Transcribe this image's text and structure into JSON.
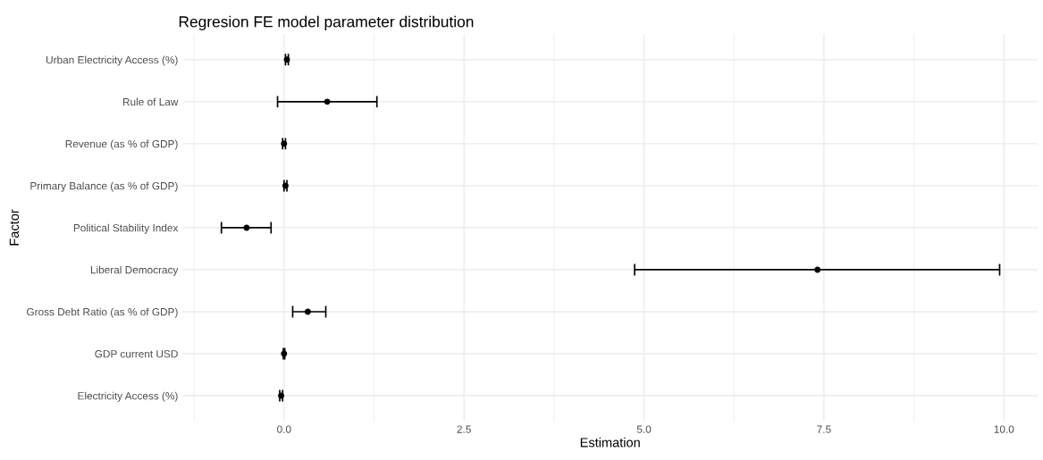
{
  "chart_data": {
    "type": "scatter",
    "orientation": "horizontal",
    "title": "Regresion FE model parameter distribution",
    "xlabel": "Estimation",
    "ylabel": "Factor",
    "categories": [
      "Urban Electricity Access (%)",
      "Rule of Law",
      "Revenue (as % of GDP)",
      "Primary Balance (as % of GDP)",
      "Political Stability Index",
      "Liberal Democracy",
      "Gross Debt Ratio (as % of GDP)",
      "GDP current USD",
      "Electricity Access (%)"
    ],
    "series": [
      {
        "color": "#000000",
        "values": [
          0.04,
          0.6,
          0.0,
          0.02,
          -0.52,
          7.41,
          0.33,
          0.0,
          -0.04
        ],
        "errors": [
          [
            0.02,
            0.06
          ],
          [
            -0.09,
            1.29
          ],
          [
            -0.02,
            0.02
          ],
          [
            0.0,
            0.04
          ],
          [
            -0.87,
            -0.18
          ],
          [
            4.87,
            9.94
          ],
          [
            0.12,
            0.58
          ],
          [
            -0.01,
            0.01
          ],
          [
            -0.06,
            -0.02
          ]
        ]
      }
    ],
    "xlim": [
      -1.41,
      10.47
    ],
    "xticks": [
      {
        "value": -1.25,
        "label": null
      },
      {
        "value": 0,
        "label": "0.0"
      },
      {
        "value": 1.25,
        "label": null
      },
      {
        "value": 2.5,
        "label": "2.5"
      },
      {
        "value": 3.75,
        "label": null
      },
      {
        "value": 5,
        "label": "5.0"
      },
      {
        "value": 6.25,
        "label": null
      },
      {
        "value": 7.5,
        "label": "7.5"
      },
      {
        "value": 8.75,
        "label": null
      },
      {
        "value": 10,
        "label": "10.0"
      }
    ],
    "grid": true,
    "marker": "circle"
  }
}
